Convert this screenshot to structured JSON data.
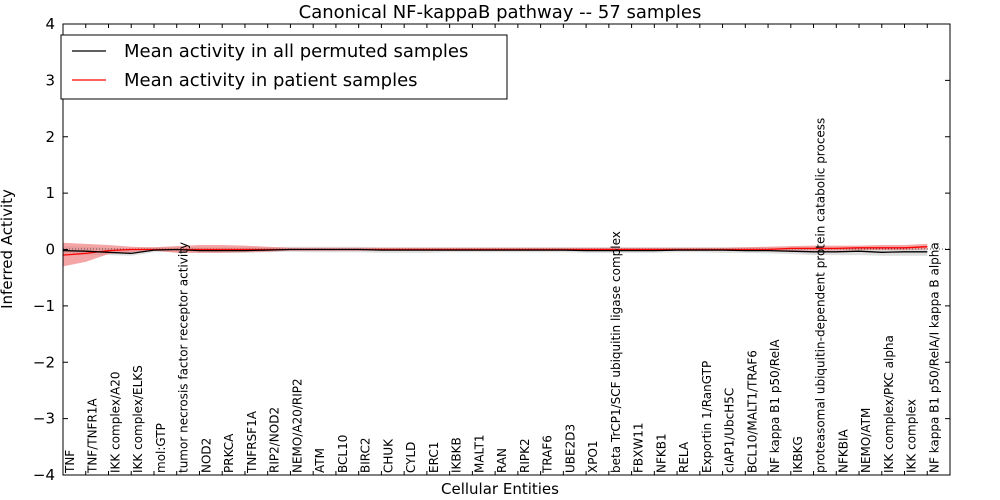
{
  "chart_data": {
    "type": "line",
    "title": "Canonical NF-kappaB pathway -- 57 samples",
    "xlabel": "Cellular Entities",
    "ylabel": "Inferred Activity",
    "ylim": [
      -4,
      4
    ],
    "yticks": [
      4,
      3,
      2,
      1,
      0,
      -1,
      -2,
      -3,
      -4
    ],
    "ytick_labels": [
      "4",
      "3",
      "2",
      "1",
      "0",
      "−1",
      "−2",
      "−3",
      "−4"
    ],
    "grid": false,
    "legend_position": "top-left",
    "categories": [
      "TNF",
      "TNF/TNFR1A",
      "IKK complex/A20",
      "IKK complex/ELKS",
      "mol:GTP",
      "tumor necrosis factor receptor activity",
      "NOD2",
      "PRKCA",
      "TNFRSF1A",
      "RIP2/NOD2",
      "NEMO/A20/RIP2",
      "ATM",
      "BCL10",
      "BIRC2",
      "CHUK",
      "CYLD",
      "ERC1",
      "IKBKB",
      "MALT1",
      "RAN",
      "RIPK2",
      "TRAF6",
      "UBE2D3",
      "XPO1",
      "beta TrCP1/SCF ubiquitin ligase complex",
      "FBXW11",
      "NFKB1",
      "RELA",
      "Exportin 1/RanGTP",
      "cIAP1/UbcH5C",
      "BCL10/MALT1/TRAF6",
      "NF kappa B1 p50/RelA",
      "IKBKG",
      "proteasomal ubiquitin-dependent protein catabolic process",
      "NFKBIA",
      "NEMO/ATM",
      "IKK complex/PKC alpha",
      "IKK complex",
      "NF kappa B1 p50/RelA/I kappa B alpha"
    ],
    "series": [
      {
        "name": "Mean activity in all permuted samples",
        "color": "#000000",
        "values": [
          -0.02,
          -0.03,
          -0.05,
          -0.07,
          -0.01,
          0.0,
          -0.02,
          -0.02,
          -0.02,
          -0.01,
          0.0,
          0.0,
          0.0,
          0.0,
          -0.01,
          -0.01,
          -0.01,
          -0.01,
          -0.01,
          -0.01,
          -0.01,
          -0.01,
          -0.01,
          -0.02,
          -0.02,
          -0.02,
          -0.02,
          -0.01,
          -0.01,
          -0.01,
          -0.02,
          -0.02,
          -0.03,
          -0.04,
          -0.04,
          -0.03,
          -0.05,
          -0.04,
          -0.04
        ],
        "band_lower": [
          -0.1,
          -0.1,
          -0.1,
          -0.11,
          -0.05,
          -0.04,
          -0.06,
          -0.06,
          -0.06,
          -0.05,
          -0.04,
          -0.05,
          -0.05,
          -0.05,
          -0.06,
          -0.06,
          -0.06,
          -0.05,
          -0.05,
          -0.05,
          -0.05,
          -0.05,
          -0.05,
          -0.06,
          -0.06,
          -0.06,
          -0.06,
          -0.05,
          -0.05,
          -0.06,
          -0.06,
          -0.07,
          -0.08,
          -0.1,
          -0.1,
          -0.1,
          -0.11,
          -0.11,
          -0.11
        ],
        "band_upper": [
          0.06,
          0.05,
          0.03,
          0.0,
          0.04,
          0.05,
          0.04,
          0.04,
          0.04,
          0.04,
          0.05,
          0.05,
          0.05,
          0.05,
          0.04,
          0.04,
          0.04,
          0.04,
          0.04,
          0.04,
          0.04,
          0.04,
          0.04,
          0.04,
          0.04,
          0.04,
          0.04,
          0.04,
          0.04,
          0.04,
          0.04,
          0.04,
          0.03,
          0.03,
          0.03,
          0.04,
          0.03,
          0.03,
          0.04
        ],
        "band_color": "#c8c8c8"
      },
      {
        "name": "Mean activity in patient samples",
        "color": "#ff0000",
        "values": [
          -0.1,
          -0.07,
          -0.02,
          0.0,
          0.0,
          0.0,
          0.0,
          0.0,
          0.0,
          0.0,
          0.0,
          0.0,
          0.0,
          0.0,
          0.0,
          0.0,
          0.0,
          0.0,
          0.0,
          0.0,
          0.0,
          0.0,
          0.0,
          0.0,
          0.0,
          0.0,
          0.0,
          0.0,
          0.0,
          0.0,
          0.0,
          0.0,
          0.02,
          0.02,
          0.02,
          0.03,
          0.03,
          0.03,
          0.05
        ],
        "band_lower": [
          -0.3,
          -0.22,
          -0.08,
          -0.05,
          -0.02,
          -0.06,
          -0.06,
          -0.06,
          -0.05,
          -0.04,
          -0.02,
          -0.02,
          -0.02,
          -0.02,
          -0.02,
          -0.02,
          -0.02,
          -0.02,
          -0.02,
          -0.02,
          -0.02,
          -0.02,
          -0.02,
          -0.02,
          -0.02,
          -0.02,
          -0.02,
          -0.02,
          -0.02,
          -0.02,
          -0.02,
          -0.02,
          -0.02,
          -0.02,
          -0.02,
          -0.01,
          -0.01,
          -0.01,
          0.0
        ],
        "band_upper": [
          0.12,
          0.1,
          0.08,
          0.05,
          0.04,
          0.06,
          0.08,
          0.08,
          0.07,
          0.05,
          0.03,
          0.03,
          0.03,
          0.03,
          0.03,
          0.03,
          0.03,
          0.03,
          0.03,
          0.03,
          0.03,
          0.03,
          0.03,
          0.03,
          0.03,
          0.03,
          0.03,
          0.03,
          0.03,
          0.03,
          0.04,
          0.05,
          0.06,
          0.07,
          0.07,
          0.07,
          0.08,
          0.08,
          0.1
        ],
        "band_color": "#f08080"
      }
    ]
  }
}
